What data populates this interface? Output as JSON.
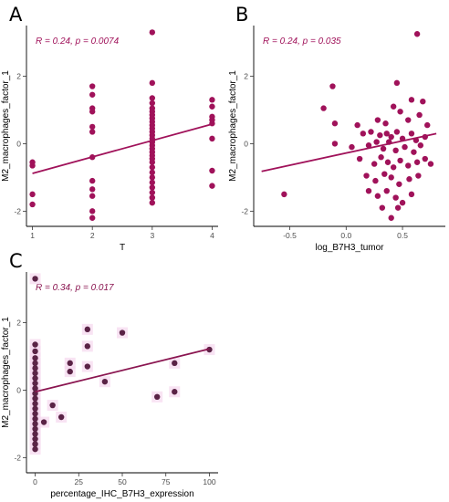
{
  "chart_data": [
    {
      "type": "scatter",
      "panel": "A",
      "xlabel": "T",
      "ylabel": "M2_macrophages_factor_1",
      "annotation": "R = 0.24, p = 0.0074",
      "xlim": [
        0.9,
        4.1
      ],
      "ylim": [
        -2.45,
        3.5
      ],
      "xticks": [
        1,
        2,
        3,
        4
      ],
      "yticks": [
        -2,
        0,
        2
      ],
      "point_color": "#a0125a",
      "line_color": "#a0125a",
      "grid": false,
      "points": [
        {
          "x": 1,
          "y": -0.55
        },
        {
          "x": 1,
          "y": -0.65
        },
        {
          "x": 1,
          "y": -1.5
        },
        {
          "x": 1,
          "y": -1.8
        },
        {
          "x": 2,
          "y": 1.7
        },
        {
          "x": 2,
          "y": 1.45
        },
        {
          "x": 2,
          "y": 1.05
        },
        {
          "x": 2,
          "y": 0.95
        },
        {
          "x": 2,
          "y": 0.5
        },
        {
          "x": 2,
          "y": 0.35
        },
        {
          "x": 2,
          "y": -0.4
        },
        {
          "x": 2,
          "y": -1.1
        },
        {
          "x": 2,
          "y": -1.35
        },
        {
          "x": 2,
          "y": -1.55
        },
        {
          "x": 2,
          "y": -2.0
        },
        {
          "x": 2,
          "y": -2.2
        },
        {
          "x": 3,
          "y": 3.3
        },
        {
          "x": 3,
          "y": 1.8
        },
        {
          "x": 3,
          "y": 1.35
        },
        {
          "x": 3,
          "y": 1.2
        },
        {
          "x": 3,
          "y": 1.05
        },
        {
          "x": 3,
          "y": 0.95
        },
        {
          "x": 3,
          "y": 0.85
        },
        {
          "x": 3,
          "y": 0.75
        },
        {
          "x": 3,
          "y": 0.65
        },
        {
          "x": 3,
          "y": 0.55
        },
        {
          "x": 3,
          "y": 0.45
        },
        {
          "x": 3,
          "y": 0.35
        },
        {
          "x": 3,
          "y": 0.25
        },
        {
          "x": 3,
          "y": 0.15
        },
        {
          "x": 3,
          "y": 0.05
        },
        {
          "x": 3,
          "y": -0.05
        },
        {
          "x": 3,
          "y": -0.15
        },
        {
          "x": 3,
          "y": -0.25
        },
        {
          "x": 3,
          "y": -0.35
        },
        {
          "x": 3,
          "y": -0.45
        },
        {
          "x": 3,
          "y": -0.55
        },
        {
          "x": 3,
          "y": -0.7
        },
        {
          "x": 3,
          "y": -0.85
        },
        {
          "x": 3,
          "y": -1.0
        },
        {
          "x": 3,
          "y": -1.15
        },
        {
          "x": 3,
          "y": -1.3
        },
        {
          "x": 3,
          "y": -1.45
        },
        {
          "x": 3,
          "y": -1.6
        },
        {
          "x": 3,
          "y": -1.75
        },
        {
          "x": 4,
          "y": 1.3
        },
        {
          "x": 4,
          "y": 1.1
        },
        {
          "x": 4,
          "y": 0.8
        },
        {
          "x": 4,
          "y": 0.7
        },
        {
          "x": 4,
          "y": 0.6
        },
        {
          "x": 4,
          "y": 0.15
        },
        {
          "x": 4,
          "y": -0.8
        },
        {
          "x": 4,
          "y": -1.25
        }
      ],
      "fit": {
        "x": [
          1,
          4
        ],
        "y": [
          -0.88,
          0.58
        ]
      }
    },
    {
      "type": "scatter",
      "panel": "B",
      "xlabel": "log_B7H3_tumor",
      "ylabel": "M2_macrophages_factor_1",
      "annotation": "R = 0.24, p = 0.035",
      "xlim": [
        -0.82,
        0.88
      ],
      "ylim": [
        -2.45,
        3.5
      ],
      "xticks": [
        -0.5,
        0.0,
        0.5
      ],
      "xticklabels": [
        "-0.5",
        "0.0",
        "0.5"
      ],
      "yticks": [
        -2,
        0,
        2
      ],
      "point_color": "#a0125a",
      "line_color": "#a0125a",
      "grid": false,
      "points": [
        {
          "x": 0.63,
          "y": 3.25
        },
        {
          "x": -0.12,
          "y": 1.7
        },
        {
          "x": 0.45,
          "y": 1.8
        },
        {
          "x": -0.2,
          "y": 1.05
        },
        {
          "x": 0.58,
          "y": 1.3
        },
        {
          "x": 0.68,
          "y": 1.25
        },
        {
          "x": -0.1,
          "y": 0.6
        },
        {
          "x": 0.1,
          "y": 0.55
        },
        {
          "x": 0.28,
          "y": 0.7
        },
        {
          "x": 0.35,
          "y": 0.6
        },
        {
          "x": 0.42,
          "y": 1.1
        },
        {
          "x": 0.48,
          "y": 0.95
        },
        {
          "x": 0.55,
          "y": 0.7
        },
        {
          "x": 0.65,
          "y": 0.85
        },
        {
          "x": 0.72,
          "y": 0.55
        },
        {
          "x": 0.15,
          "y": 0.3
        },
        {
          "x": 0.22,
          "y": 0.35
        },
        {
          "x": 0.3,
          "y": 0.25
        },
        {
          "x": 0.36,
          "y": 0.3
        },
        {
          "x": 0.4,
          "y": 0.2
        },
        {
          "x": 0.45,
          "y": 0.35
        },
        {
          "x": 0.5,
          "y": 0.15
        },
        {
          "x": 0.58,
          "y": 0.3
        },
        {
          "x": 0.62,
          "y": 0.1
        },
        {
          "x": 0.7,
          "y": 0.2
        },
        {
          "x": -0.1,
          "y": 0.0
        },
        {
          "x": 0.05,
          "y": -0.1
        },
        {
          "x": 0.2,
          "y": -0.05
        },
        {
          "x": 0.27,
          "y": 0.05
        },
        {
          "x": 0.33,
          "y": -0.15
        },
        {
          "x": 0.38,
          "y": 0.05
        },
        {
          "x": 0.44,
          "y": -0.2
        },
        {
          "x": 0.52,
          "y": -0.1
        },
        {
          "x": 0.6,
          "y": -0.25
        },
        {
          "x": 0.66,
          "y": -0.05
        },
        {
          "x": 0.12,
          "y": -0.45
        },
        {
          "x": 0.25,
          "y": -0.6
        },
        {
          "x": 0.31,
          "y": -0.4
        },
        {
          "x": 0.37,
          "y": -0.55
        },
        {
          "x": 0.42,
          "y": -0.7
        },
        {
          "x": 0.48,
          "y": -0.5
        },
        {
          "x": 0.55,
          "y": -0.65
        },
        {
          "x": 0.63,
          "y": -0.55
        },
        {
          "x": 0.7,
          "y": -0.45
        },
        {
          "x": 0.75,
          "y": -0.6
        },
        {
          "x": 0.18,
          "y": -0.95
        },
        {
          "x": 0.26,
          "y": -1.1
        },
        {
          "x": 0.34,
          "y": -0.9
        },
        {
          "x": 0.4,
          "y": -1.0
        },
        {
          "x": 0.47,
          "y": -1.2
        },
        {
          "x": 0.56,
          "y": -1.05
        },
        {
          "x": 0.64,
          "y": -0.95
        },
        {
          "x": -0.55,
          "y": -1.5
        },
        {
          "x": 0.2,
          "y": -1.4
        },
        {
          "x": 0.28,
          "y": -1.55
        },
        {
          "x": 0.36,
          "y": -1.4
        },
        {
          "x": 0.44,
          "y": -1.6
        },
        {
          "x": 0.5,
          "y": -1.75
        },
        {
          "x": 0.58,
          "y": -1.5
        },
        {
          "x": 0.32,
          "y": -1.9
        },
        {
          "x": 0.4,
          "y": -2.2
        },
        {
          "x": 0.46,
          "y": -1.9
        }
      ],
      "fit": {
        "x": [
          -0.75,
          0.8
        ],
        "y": [
          -0.82,
          0.3
        ]
      }
    },
    {
      "type": "scatter",
      "panel": "C",
      "xlabel": "percentage_IHC_B7H3_expression",
      "ylabel": "M2_macrophages_factor_1",
      "annotation": "R = 0.34, p = 0.017",
      "xlim": [
        -5,
        105
      ],
      "ylim": [
        -2.45,
        3.5
      ],
      "xticks": [
        0,
        25,
        50,
        75,
        100
      ],
      "yticks": [
        -2,
        0,
        2
      ],
      "point_color": "#5a2346",
      "line_color": "#8a1550",
      "grid": false,
      "points": [
        {
          "x": 0,
          "y": 3.3
        },
        {
          "x": 0,
          "y": 1.35
        },
        {
          "x": 0,
          "y": 1.15
        },
        {
          "x": 0,
          "y": 0.95
        },
        {
          "x": 0,
          "y": 0.8
        },
        {
          "x": 0,
          "y": 0.65
        },
        {
          "x": 0,
          "y": 0.5
        },
        {
          "x": 0,
          "y": 0.35
        },
        {
          "x": 0,
          "y": 0.2
        },
        {
          "x": 0,
          "y": 0.05
        },
        {
          "x": 0,
          "y": -0.1
        },
        {
          "x": 0,
          "y": -0.25
        },
        {
          "x": 0,
          "y": -0.4
        },
        {
          "x": 0,
          "y": -0.55
        },
        {
          "x": 0,
          "y": -0.7
        },
        {
          "x": 0,
          "y": -0.85
        },
        {
          "x": 0,
          "y": -1.0
        },
        {
          "x": 0,
          "y": -1.15
        },
        {
          "x": 0,
          "y": -1.3
        },
        {
          "x": 0,
          "y": -1.45
        },
        {
          "x": 0,
          "y": -1.6
        },
        {
          "x": 0,
          "y": -1.75
        },
        {
          "x": 5,
          "y": -0.95
        },
        {
          "x": 10,
          "y": -0.45
        },
        {
          "x": 15,
          "y": -0.8
        },
        {
          "x": 20,
          "y": 0.8
        },
        {
          "x": 20,
          "y": 0.55
        },
        {
          "x": 30,
          "y": 1.8
        },
        {
          "x": 30,
          "y": 1.3
        },
        {
          "x": 30,
          "y": 0.7
        },
        {
          "x": 40,
          "y": 0.25
        },
        {
          "x": 50,
          "y": 1.7
        },
        {
          "x": 70,
          "y": -0.2
        },
        {
          "x": 80,
          "y": 0.8
        },
        {
          "x": 80,
          "y": -0.05
        },
        {
          "x": 100,
          "y": 1.2
        }
      ],
      "fit": {
        "x": [
          0,
          100
        ],
        "y": [
          -0.05,
          1.22
        ]
      }
    }
  ]
}
